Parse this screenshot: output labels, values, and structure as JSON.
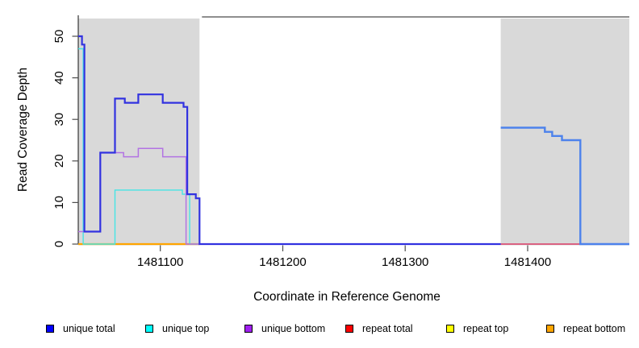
{
  "figure": {
    "y_axis_title": "Read Coverage Depth",
    "x_axis_title": "Coordinate in Reference Genome",
    "background_color": "#FFFFFF",
    "plot_band_color": "#D9D9D9",
    "legend": [
      {
        "label": "unique total",
        "color": "#0000FF"
      },
      {
        "label": "unique top",
        "color": "#00FFFF"
      },
      {
        "label": "unique bottom",
        "color": "#A020F0"
      },
      {
        "label": "repeat total",
        "color": "#FF0000"
      },
      {
        "label": "repeat top",
        "color": "#FFFF00"
      },
      {
        "label": "repeat bottom",
        "color": "#FFA500"
      }
    ],
    "chart_data": {
      "type": "line",
      "step_style": "post",
      "title": "",
      "xlabel": "Coordinate in Reference Genome",
      "ylabel": "Read Coverage Depth",
      "xlim": [
        1481033,
        1481483
      ],
      "ylim": [
        0,
        55
      ],
      "x_ticks": [
        1481100,
        1481200,
        1481300,
        1481400
      ],
      "y_ticks": [
        0,
        10,
        20,
        30,
        40,
        50
      ],
      "grid": false,
      "legend_position": "bottom",
      "shaded_regions": [
        {
          "x0": 1481033,
          "x1": 1481132,
          "color": "#D9D9D9"
        },
        {
          "x0": 1481378,
          "x1": 1481483,
          "color": "#D9D9D9"
        }
      ],
      "top_rule": {
        "x0": 1481134,
        "x1": 1481483,
        "color": "#4A4A4A"
      },
      "series": [
        {
          "name": "repeat top",
          "color": "#FFFF00",
          "lw": 1.4,
          "steps": [
            [
              1481033,
              0
            ]
          ],
          "x_end": 1481132
        },
        {
          "name": "repeat bottom",
          "color": "#FFA500",
          "lw": 2.2,
          "steps": [
            [
              1481033,
              0
            ]
          ],
          "x_end": 1481132
        },
        {
          "name": "unique top",
          "color": "#45E5E5",
          "lw": 1.4,
          "steps": [
            [
              1481033,
              47
            ],
            [
              1481037,
              0
            ],
            [
              1481063,
              13
            ],
            [
              1481118,
              12
            ],
            [
              1481124,
              0
            ]
          ],
          "x_end": 1481483
        },
        {
          "name": "unique bottom",
          "color": "#B273E3",
          "lw": 1.5,
          "steps": [
            [
              1481033,
              3
            ],
            [
              1481051,
              22
            ],
            [
              1481070,
              21
            ],
            [
              1481082,
              23
            ],
            [
              1481102,
              21
            ],
            [
              1481121,
              0
            ]
          ],
          "x_end": 1481483
        },
        {
          "name": "repeat total",
          "color": "#ED4A63",
          "lw": 1.6,
          "steps": [
            [
              1481378,
              0
            ]
          ],
          "x_end": 1481443
        },
        {
          "name": "unique total",
          "segments": [
            {
              "color": "#3232E0",
              "lw": 2.2,
              "steps": [
                [
                  1481033,
                  50
                ],
                [
                  1481036,
                  48
                ],
                [
                  1481038,
                  3
                ],
                [
                  1481051,
                  22
                ],
                [
                  1481063,
                  35
                ],
                [
                  1481071,
                  34
                ],
                [
                  1481082,
                  36
                ],
                [
                  1481102,
                  34
                ],
                [
                  1481119,
                  33
                ],
                [
                  1481122,
                  12
                ],
                [
                  1481129,
                  11
                ],
                [
                  1481132,
                  0
                ]
              ],
              "x_end": 1481378
            },
            {
              "color": "#4D82EC",
              "lw": 2.4,
              "steps": [
                [
                  1481378,
                  28
                ],
                [
                  1481414,
                  27
                ],
                [
                  1481420,
                  26
                ],
                [
                  1481428,
                  25
                ],
                [
                  1481443,
                  0
                ]
              ],
              "x_end": 1481483
            }
          ]
        }
      ]
    }
  }
}
